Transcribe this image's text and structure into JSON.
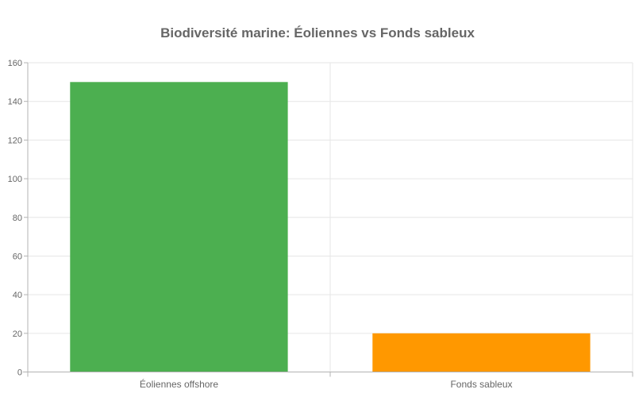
{
  "chart_data": {
    "type": "bar",
    "title": "Biodiversité marine: Éoliennes vs Fonds sableux",
    "categories": [
      "Éoliennes offshore",
      "Fonds sableux"
    ],
    "values": [
      150,
      20
    ],
    "bar_colors": [
      "#4caf50",
      "#ff9800"
    ],
    "xlabel": "",
    "ylabel": "",
    "ylim": [
      0,
      160
    ],
    "ytick_step": 20,
    "ytick_labels": [
      "0",
      "20",
      "40",
      "60",
      "80",
      "100",
      "120",
      "140",
      "160"
    ],
    "grid": true,
    "legend": "none",
    "colors": {
      "grid": "#e6e6e6",
      "axis": "#b3b3b3",
      "text": "#666666",
      "title": "#666666",
      "background": "#ffffff"
    }
  }
}
